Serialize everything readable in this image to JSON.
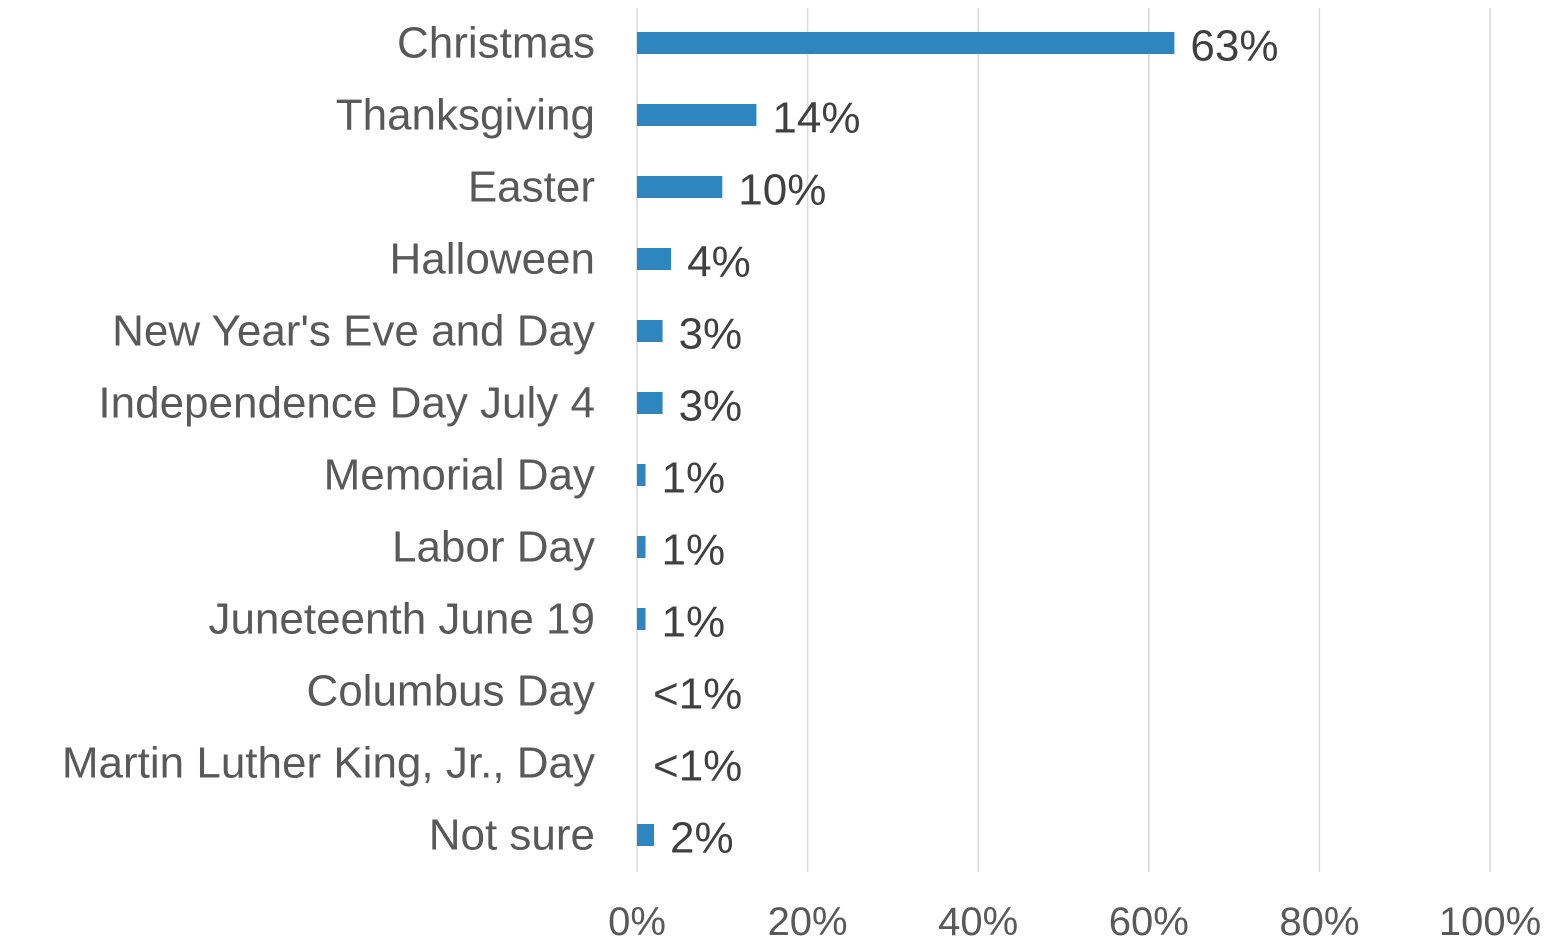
{
  "chart_data": {
    "type": "bar",
    "orientation": "horizontal",
    "categories": [
      "Christmas",
      "Thanksgiving",
      "Easter",
      "Halloween",
      "New Year's Eve and Day",
      "Independence Day July 4",
      "Memorial Day",
      "Labor Day",
      "Juneteenth June 19",
      "Columbus Day",
      "Martin Luther King, Jr., Day",
      "Not sure"
    ],
    "values": [
      63,
      14,
      10,
      4,
      3,
      3,
      1,
      1,
      1,
      0.3,
      0.3,
      2
    ],
    "data_labels": [
      "63%",
      "14%",
      "10%",
      "4%",
      "3%",
      "3%",
      "1%",
      "1%",
      "1%",
      "<1%",
      "<1%",
      "2%"
    ],
    "x_ticks": [
      "0%",
      "20%",
      "40%",
      "60%",
      "80%",
      "100%"
    ],
    "xlim": [
      0,
      100
    ],
    "grid": "vertical",
    "legend": "none",
    "bar_color": "#2e86c1"
  }
}
